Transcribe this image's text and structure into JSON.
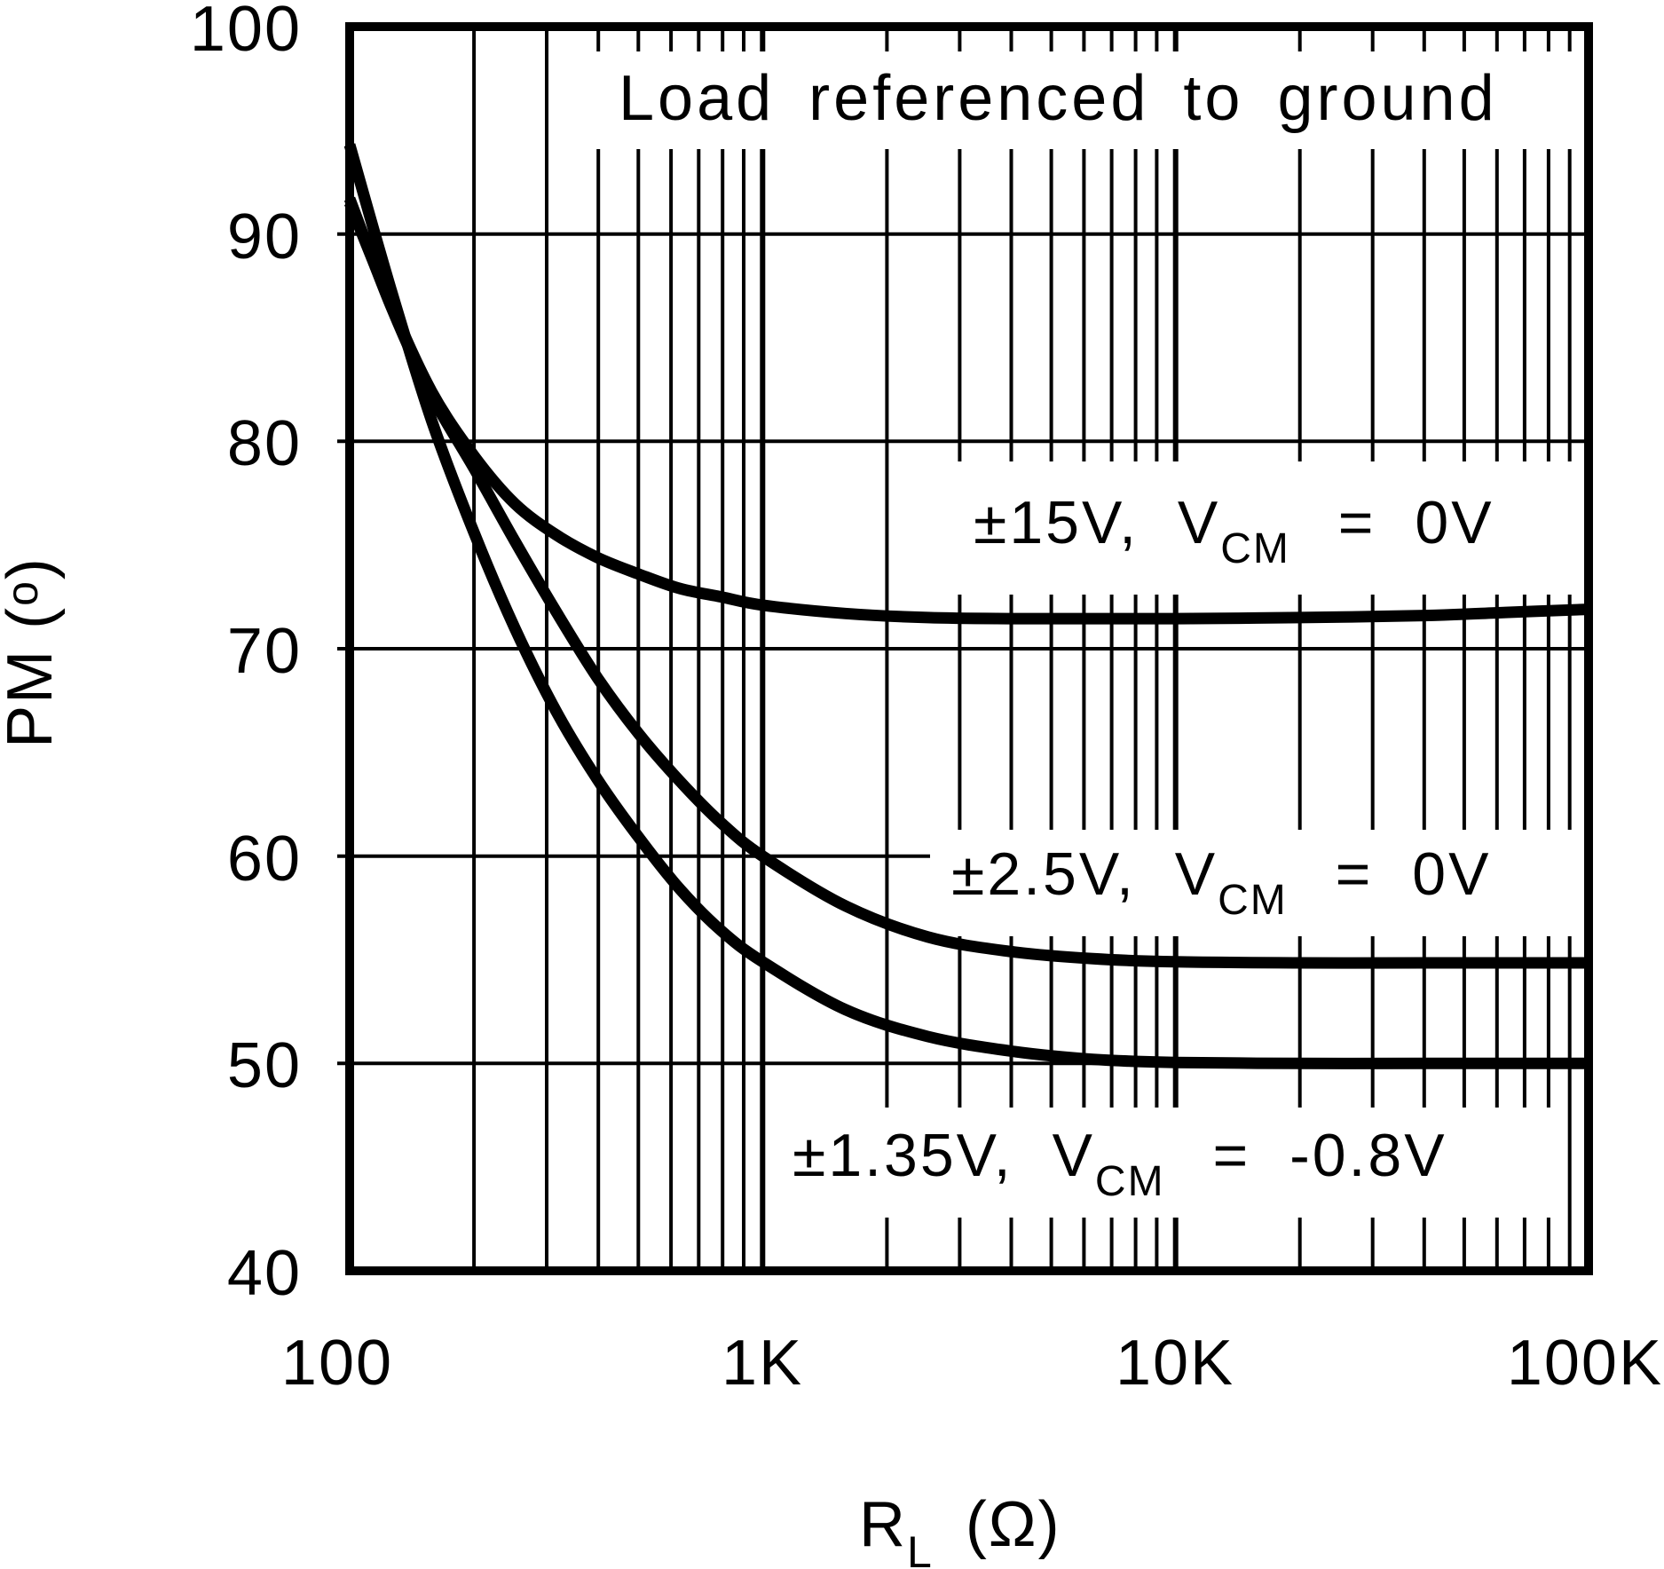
{
  "figure": {
    "title": "Load referenced to ground",
    "x_axis": {
      "label_pre": "R",
      "label_sub": "L",
      "label_post": " (Ω)",
      "ticks": [
        "100",
        "1K",
        "10K",
        "100K"
      ]
    },
    "y_axis": {
      "label_pre": "PM (",
      "label_deg": "o",
      "label_post": ")",
      "ticks": [
        "100",
        "90",
        "80",
        "70",
        "60",
        "50",
        "40"
      ]
    },
    "colors": {
      "ink": "#000000",
      "paper": "#ffffff"
    }
  },
  "annotations": [
    {
      "id": "vs15",
      "pre": "±15V, V",
      "sub": "CM",
      "post": " = 0V"
    },
    {
      "id": "vs25",
      "pre": "±2.5V, V",
      "sub": "CM",
      "post": " = 0V"
    },
    {
      "id": "vs135",
      "pre": "±1.35V, V",
      "sub": "CM",
      "post": " = -0.8V"
    }
  ],
  "chart_data": {
    "type": "line",
    "title": "Load referenced to ground",
    "xlabel": "RL (Ω)",
    "ylabel": "PM (°)",
    "x_scale": "log",
    "xlim": [
      100,
      100000
    ],
    "ylim": [
      40,
      100
    ],
    "y_tick_step": 10,
    "grid": "full log minor grid, black on white",
    "legend_position": "inline text annotations with white masks",
    "x": [
      100,
      126,
      158,
      200,
      251,
      316,
      398,
      501,
      631,
      794,
      1000,
      1585,
      2512,
      3981,
      6310,
      10000,
      20000,
      40000,
      63000,
      100000
    ],
    "series": [
      {
        "name": "±15V, VCM = 0V",
        "values": [
          91.5,
          86.6,
          82.4,
          79.3,
          77.0,
          75.5,
          74.4,
          73.6,
          72.9,
          72.5,
          72.1,
          71.7,
          71.5,
          71.45,
          71.45,
          71.45,
          71.5,
          71.6,
          71.75,
          71.9
        ]
      },
      {
        "name": "±2.5V, VCM = 0V",
        "values": [
          91.7,
          86.5,
          82.2,
          78.7,
          75.2,
          71.8,
          68.6,
          65.9,
          63.6,
          61.6,
          60.0,
          57.6,
          56.1,
          55.4,
          55.05,
          54.9,
          54.85,
          54.85,
          54.85,
          54.85
        ]
      },
      {
        "name": "±1.35V, VCM = -0.8V",
        "values": [
          94.3,
          87.3,
          81.0,
          75.6,
          71.0,
          67.0,
          63.7,
          60.9,
          58.4,
          56.4,
          54.9,
          52.6,
          51.3,
          50.6,
          50.2,
          50.05,
          50.0,
          50.0,
          50.0,
          50.0
        ]
      }
    ]
  }
}
